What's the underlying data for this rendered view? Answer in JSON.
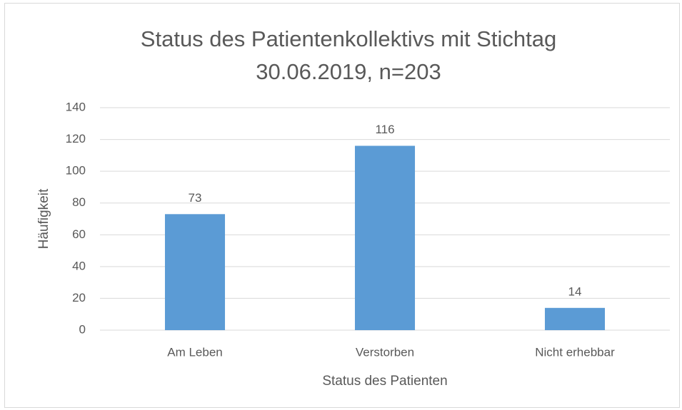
{
  "chart_data": {
    "type": "bar",
    "title": "Status des Patientenkollektivs mit Stichtag 30.06.2019, n=203",
    "x_label": "Status des Patienten",
    "y_label": "Häufigkeit",
    "categories": [
      "Am Leben",
      "Verstorben",
      "Nicht erhebbar"
    ],
    "values": [
      73,
      116,
      14
    ],
    "color": "#5b9bd5",
    "ylim": [
      0,
      140
    ],
    "yticks": [
      0,
      20,
      40,
      60,
      80,
      100,
      120,
      140
    ],
    "grid": true
  }
}
